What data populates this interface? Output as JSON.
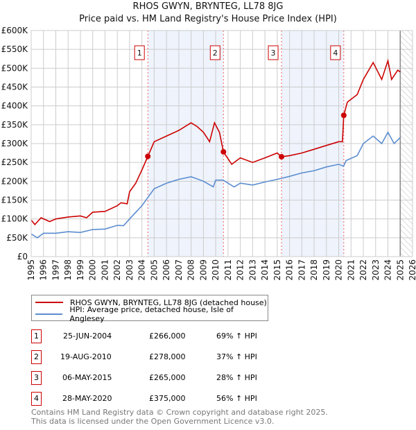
{
  "header": {
    "line1": "RHOS GWYN, BRYNTEG, LL78 8JG",
    "line2": "Price paid vs. HM Land Registry's House Price Index (HPI)"
  },
  "chart_data": {
    "type": "line",
    "title": "RHOS GWYN, BRYNTEG, LL78 8JG — Price paid vs. HM Land Registry's House Price Index (HPI)",
    "xlim": [
      1995,
      2026
    ],
    "ylim": [
      0,
      600000
    ],
    "x_ticks": [
      "1995",
      "1996",
      "1997",
      "1998",
      "1999",
      "2000",
      "2001",
      "2002",
      "2003",
      "2004",
      "2005",
      "2006",
      "2007",
      "2008",
      "2009",
      "2010",
      "2011",
      "2012",
      "2013",
      "2014",
      "2015",
      "2016",
      "2017",
      "2018",
      "2019",
      "2020",
      "2021",
      "2022",
      "2023",
      "2024",
      "2025",
      "2026"
    ],
    "y_ticks": [
      "£0",
      "£50K",
      "£100K",
      "£150K",
      "£200K",
      "£250K",
      "£300K",
      "£350K",
      "£400K",
      "£450K",
      "£500K",
      "£550K",
      "£600K"
    ],
    "grid": true,
    "legend_position": "bottom",
    "series": [
      {
        "name": "RHOS GWYN, BRYNTEG, LL78 8JG (detached house)",
        "color": "#cc0000",
        "x": [
          1995,
          1995.3,
          1995.8,
          1996.5,
          1997,
          1998,
          1999,
          1999.5,
          2000,
          2001,
          2002,
          2002.3,
          2002.8,
          2003,
          2003.5,
          2004,
          2004.48,
          2005,
          2006,
          2007,
          2008,
          2008.5,
          2009,
          2009.5,
          2009.9,
          2010.3,
          2010.63,
          2011.3,
          2012,
          2013,
          2014,
          2015,
          2015.35,
          2016,
          2017,
          2018,
          2019,
          2020,
          2020.3,
          2020.41,
          2020.7,
          2021.5,
          2022,
          2022.8,
          2023.5,
          2024,
          2024.3,
          2024.8,
          2025
        ],
        "y": [
          97000,
          85000,
          103000,
          93000,
          100000,
          105000,
          108000,
          103000,
          118000,
          120000,
          135000,
          143000,
          140000,
          172000,
          195000,
          230000,
          266000,
          305000,
          320000,
          335000,
          355000,
          345000,
          330000,
          305000,
          355000,
          330000,
          278000,
          245000,
          262000,
          250000,
          262000,
          275000,
          265000,
          268000,
          275000,
          285000,
          295000,
          305000,
          305000,
          375000,
          410000,
          430000,
          470000,
          515000,
          470000,
          520000,
          470000,
          495000,
          490000
        ]
      },
      {
        "name": "HPI: Average price, detached house, Isle of Anglesey",
        "color": "#5b8dd0",
        "x": [
          1995,
          1995.5,
          1996,
          1997,
          1998,
          1999,
          2000,
          2001,
          2002,
          2002.5,
          2003,
          2004,
          2004.48,
          2005,
          2006,
          2007,
          2008,
          2009,
          2009.8,
          2010,
          2010.6,
          2011.5,
          2012,
          2013,
          2014,
          2015,
          2016,
          2017,
          2018,
          2019,
          2020,
          2020.4,
          2020.6,
          2021.5,
          2022,
          2022.8,
          2023.5,
          2024,
          2024.5,
          2025
        ],
        "y": [
          60000,
          50000,
          62000,
          62000,
          66000,
          64000,
          72000,
          73000,
          83000,
          82000,
          100000,
          135000,
          157000,
          180000,
          195000,
          205000,
          212000,
          200000,
          185000,
          203000,
          203000,
          185000,
          195000,
          190000,
          198000,
          205000,
          213000,
          222000,
          228000,
          238000,
          245000,
          240000,
          255000,
          268000,
          300000,
          320000,
          300000,
          330000,
          300000,
          316000
        ]
      }
    ],
    "sales": [
      {
        "label": "1",
        "x": 2004.48,
        "y": 266000
      },
      {
        "label": "2",
        "x": 2010.63,
        "y": 278000
      },
      {
        "label": "3",
        "x": 2015.35,
        "y": 265000
      },
      {
        "label": "4",
        "x": 2020.41,
        "y": 375000
      }
    ],
    "shaded_ranges": [
      [
        2004.48,
        2010.63
      ],
      [
        2015.35,
        2020.41
      ]
    ],
    "projection_start": 2025
  },
  "legend": {
    "red": "RHOS GWYN, BRYNTEG, LL78 8JG (detached house)",
    "blue": "HPI: Average price, detached house, Isle of Anglesey"
  },
  "table": [
    {
      "num": "1",
      "date": "25-JUN-2004",
      "price": "£266,000",
      "hpi": "69% ↑ HPI"
    },
    {
      "num": "2",
      "date": "19-AUG-2010",
      "price": "£278,000",
      "hpi": "37% ↑ HPI"
    },
    {
      "num": "3",
      "date": "06-MAY-2015",
      "price": "£265,000",
      "hpi": "28% ↑ HPI"
    },
    {
      "num": "4",
      "date": "28-MAY-2020",
      "price": "£375,000",
      "hpi": "56% ↑ HPI"
    }
  ],
  "footer": {
    "line1": "Contains HM Land Registry data © Crown copyright and database right 2025.",
    "line2": "This data is licensed under the Open Government Licence v3.0."
  }
}
